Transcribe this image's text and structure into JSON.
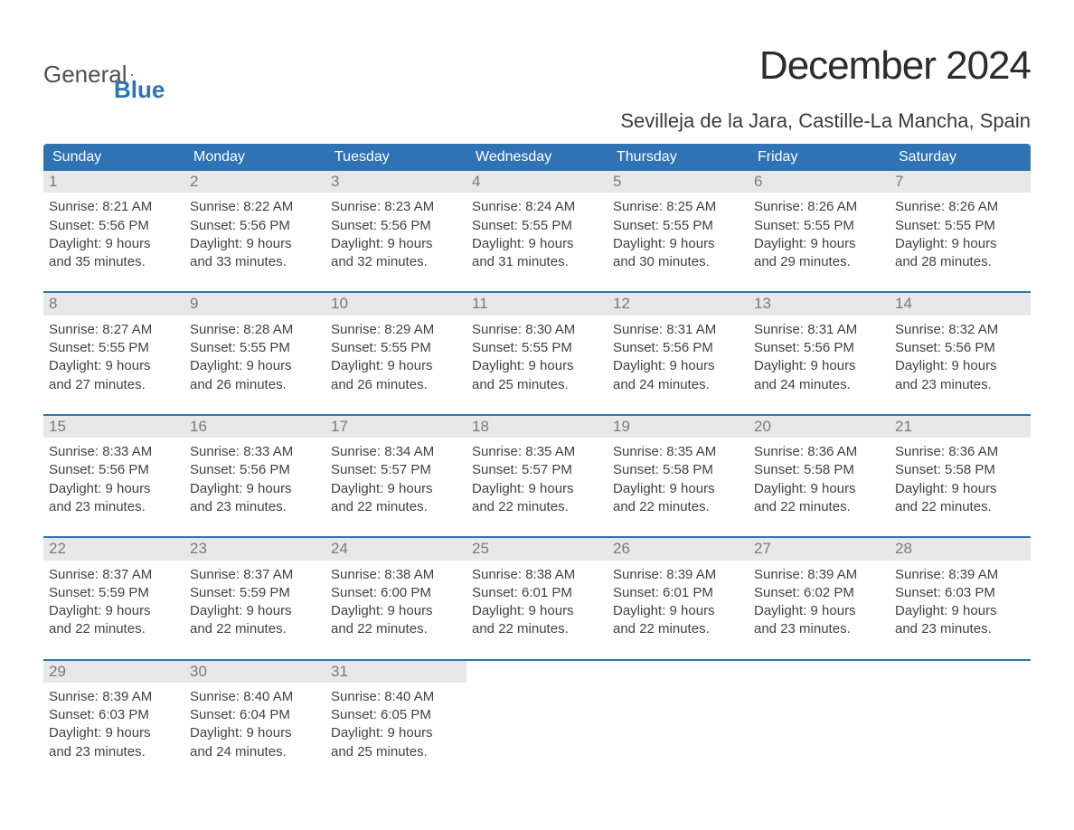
{
  "brand": {
    "word1": "General",
    "word2": "Blue",
    "flag_color": "#2f73b4"
  },
  "title": "December 2024",
  "subtitle": "Sevilleja de la Jara, Castille-La Mancha, Spain",
  "colors": {
    "header_bg": "#2f73b4",
    "header_text": "#ffffff",
    "date_bg": "#e8e8e8",
    "date_text": "#7a7a7a",
    "body_text": "#424242",
    "divider": "#2f73b4",
    "background": "#ffffff"
  },
  "dows": [
    "Sunday",
    "Monday",
    "Tuesday",
    "Wednesday",
    "Thursday",
    "Friday",
    "Saturday"
  ],
  "weeks": [
    [
      {
        "day": "1",
        "sunrise": "Sunrise: 8:21 AM",
        "sunset": "Sunset: 5:56 PM",
        "d1": "Daylight: 9 hours",
        "d2": "and 35 minutes."
      },
      {
        "day": "2",
        "sunrise": "Sunrise: 8:22 AM",
        "sunset": "Sunset: 5:56 PM",
        "d1": "Daylight: 9 hours",
        "d2": "and 33 minutes."
      },
      {
        "day": "3",
        "sunrise": "Sunrise: 8:23 AM",
        "sunset": "Sunset: 5:56 PM",
        "d1": "Daylight: 9 hours",
        "d2": "and 32 minutes."
      },
      {
        "day": "4",
        "sunrise": "Sunrise: 8:24 AM",
        "sunset": "Sunset: 5:55 PM",
        "d1": "Daylight: 9 hours",
        "d2": "and 31 minutes."
      },
      {
        "day": "5",
        "sunrise": "Sunrise: 8:25 AM",
        "sunset": "Sunset: 5:55 PM",
        "d1": "Daylight: 9 hours",
        "d2": "and 30 minutes."
      },
      {
        "day": "6",
        "sunrise": "Sunrise: 8:26 AM",
        "sunset": "Sunset: 5:55 PM",
        "d1": "Daylight: 9 hours",
        "d2": "and 29 minutes."
      },
      {
        "day": "7",
        "sunrise": "Sunrise: 8:26 AM",
        "sunset": "Sunset: 5:55 PM",
        "d1": "Daylight: 9 hours",
        "d2": "and 28 minutes."
      }
    ],
    [
      {
        "day": "8",
        "sunrise": "Sunrise: 8:27 AM",
        "sunset": "Sunset: 5:55 PM",
        "d1": "Daylight: 9 hours",
        "d2": "and 27 minutes."
      },
      {
        "day": "9",
        "sunrise": "Sunrise: 8:28 AM",
        "sunset": "Sunset: 5:55 PM",
        "d1": "Daylight: 9 hours",
        "d2": "and 26 minutes."
      },
      {
        "day": "10",
        "sunrise": "Sunrise: 8:29 AM",
        "sunset": "Sunset: 5:55 PM",
        "d1": "Daylight: 9 hours",
        "d2": "and 26 minutes."
      },
      {
        "day": "11",
        "sunrise": "Sunrise: 8:30 AM",
        "sunset": "Sunset: 5:55 PM",
        "d1": "Daylight: 9 hours",
        "d2": "and 25 minutes."
      },
      {
        "day": "12",
        "sunrise": "Sunrise: 8:31 AM",
        "sunset": "Sunset: 5:56 PM",
        "d1": "Daylight: 9 hours",
        "d2": "and 24 minutes."
      },
      {
        "day": "13",
        "sunrise": "Sunrise: 8:31 AM",
        "sunset": "Sunset: 5:56 PM",
        "d1": "Daylight: 9 hours",
        "d2": "and 24 minutes."
      },
      {
        "day": "14",
        "sunrise": "Sunrise: 8:32 AM",
        "sunset": "Sunset: 5:56 PM",
        "d1": "Daylight: 9 hours",
        "d2": "and 23 minutes."
      }
    ],
    [
      {
        "day": "15",
        "sunrise": "Sunrise: 8:33 AM",
        "sunset": "Sunset: 5:56 PM",
        "d1": "Daylight: 9 hours",
        "d2": "and 23 minutes."
      },
      {
        "day": "16",
        "sunrise": "Sunrise: 8:33 AM",
        "sunset": "Sunset: 5:56 PM",
        "d1": "Daylight: 9 hours",
        "d2": "and 23 minutes."
      },
      {
        "day": "17",
        "sunrise": "Sunrise: 8:34 AM",
        "sunset": "Sunset: 5:57 PM",
        "d1": "Daylight: 9 hours",
        "d2": "and 22 minutes."
      },
      {
        "day": "18",
        "sunrise": "Sunrise: 8:35 AM",
        "sunset": "Sunset: 5:57 PM",
        "d1": "Daylight: 9 hours",
        "d2": "and 22 minutes."
      },
      {
        "day": "19",
        "sunrise": "Sunrise: 8:35 AM",
        "sunset": "Sunset: 5:58 PM",
        "d1": "Daylight: 9 hours",
        "d2": "and 22 minutes."
      },
      {
        "day": "20",
        "sunrise": "Sunrise: 8:36 AM",
        "sunset": "Sunset: 5:58 PM",
        "d1": "Daylight: 9 hours",
        "d2": "and 22 minutes."
      },
      {
        "day": "21",
        "sunrise": "Sunrise: 8:36 AM",
        "sunset": "Sunset: 5:58 PM",
        "d1": "Daylight: 9 hours",
        "d2": "and 22 minutes."
      }
    ],
    [
      {
        "day": "22",
        "sunrise": "Sunrise: 8:37 AM",
        "sunset": "Sunset: 5:59 PM",
        "d1": "Daylight: 9 hours",
        "d2": "and 22 minutes."
      },
      {
        "day": "23",
        "sunrise": "Sunrise: 8:37 AM",
        "sunset": "Sunset: 5:59 PM",
        "d1": "Daylight: 9 hours",
        "d2": "and 22 minutes."
      },
      {
        "day": "24",
        "sunrise": "Sunrise: 8:38 AM",
        "sunset": "Sunset: 6:00 PM",
        "d1": "Daylight: 9 hours",
        "d2": "and 22 minutes."
      },
      {
        "day": "25",
        "sunrise": "Sunrise: 8:38 AM",
        "sunset": "Sunset: 6:01 PM",
        "d1": "Daylight: 9 hours",
        "d2": "and 22 minutes."
      },
      {
        "day": "26",
        "sunrise": "Sunrise: 8:39 AM",
        "sunset": "Sunset: 6:01 PM",
        "d1": "Daylight: 9 hours",
        "d2": "and 22 minutes."
      },
      {
        "day": "27",
        "sunrise": "Sunrise: 8:39 AM",
        "sunset": "Sunset: 6:02 PM",
        "d1": "Daylight: 9 hours",
        "d2": "and 23 minutes."
      },
      {
        "day": "28",
        "sunrise": "Sunrise: 8:39 AM",
        "sunset": "Sunset: 6:03 PM",
        "d1": "Daylight: 9 hours",
        "d2": "and 23 minutes."
      }
    ],
    [
      {
        "day": "29",
        "sunrise": "Sunrise: 8:39 AM",
        "sunset": "Sunset: 6:03 PM",
        "d1": "Daylight: 9 hours",
        "d2": "and 23 minutes."
      },
      {
        "day": "30",
        "sunrise": "Sunrise: 8:40 AM",
        "sunset": "Sunset: 6:04 PM",
        "d1": "Daylight: 9 hours",
        "d2": "and 24 minutes."
      },
      {
        "day": "31",
        "sunrise": "Sunrise: 8:40 AM",
        "sunset": "Sunset: 6:05 PM",
        "d1": "Daylight: 9 hours",
        "d2": "and 25 minutes."
      },
      {
        "empty": true
      },
      {
        "empty": true
      },
      {
        "empty": true
      },
      {
        "empty": true
      }
    ]
  ]
}
